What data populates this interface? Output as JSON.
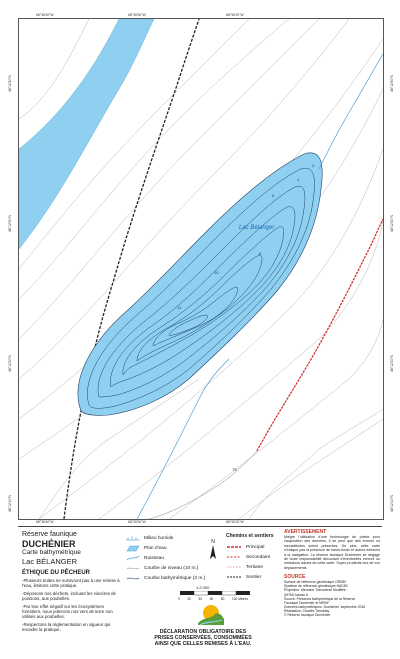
{
  "map": {
    "lake_label": "Lac Bélanger",
    "depth_labels": [
      "2",
      "4",
      "6",
      "8",
      "10",
      "12"
    ],
    "road_label": "TE"
  },
  "coordinates": {
    "top": [
      "68°35'40\"W",
      "68°35'30\"W",
      "68°35'20\"W"
    ],
    "bottom": [
      "68°35'40\"W",
      "68°35'30\"W",
      "68°35'20\"W"
    ],
    "left": [
      "48°12'40\"N",
      "48°12'30\"N",
      "48°12'20\"N",
      "48°12'10\"N"
    ],
    "right": [
      "48°12'40\"N",
      "48°12'30\"N",
      "48°12'20\"N",
      "48°12'10\"N"
    ]
  },
  "title_block": {
    "reserve_label": "Réserve faunique",
    "reserve_name": "DUCHÉNIER",
    "chart_type": "Carte bathymétrique",
    "lake_name": "Lac BÉLANGER"
  },
  "fisher_ethics": {
    "title": "ÉTHIQUE DU PÊCHEUR",
    "items": [
      "-Plusieurs truites ne survivront pas à une remise à l'eau, limitons cette pratique.",
      "-Déposons nos déchets, incluant les viscères de poissons, aux poubelles.",
      "-Par leur effet négatif sur les écosystèmes forestiers, nous jetterons nos vers de terre non utilisés aux poubelles.",
      "-Respectons la réglementation en vigueur qui encadre la pratique."
    ]
  },
  "legend": {
    "items": [
      "Milieu humide",
      "Plan d'eau",
      "Ruisseau",
      "Courbe de niveau (10 m.)",
      "Courbe bathymétrique (2 m.)"
    ],
    "trails_title": "Chemins et sentiers",
    "trails": [
      "Principal",
      "Secondaire",
      "Tertiaire",
      "Sentier"
    ]
  },
  "north_letter": "N",
  "scale": {
    "ratio": "1:2 000",
    "ticks": [
      "0",
      "20",
      "40",
      "60",
      "80",
      "100 Mètres"
    ]
  },
  "declaration": [
    "DÉCLARATION OBLIGATOIRE DES",
    "PRISES CONSERVÉES, CONSOMMÉES",
    "AINSI QUE CELLES REMISES À L'EAU."
  ],
  "warning": {
    "title": "AVERTISSEMENT",
    "text": "Malgré l'utilisation d'une technologie de pointe pour l'acquisition des données, il se peut que des erreurs ou inexactitudes soient présentes. De plus, cette carte n'indique pas la présence de hauts-fonds et autres entraves à la navigation. La réserve faunique Duchénier se dégage de toute responsabilité découlant d'éventuelles erreurs ou omissions issues de cette carte. Soyez prudents lors de vos déplacements."
  },
  "source": {
    "title": "SOURCE",
    "lines": [
      "Surface de référence géodésique GRS80",
      "Système de référence géodésique NAD83",
      "Projection: Mercator Transverse Modifiée",
      "(MTM) fuseau 6",
      "Source: Présence bathymétrique de la Réserve",
      "Faunique Duchénier et MRNF",
      "Données bathymétriques: Duchénier, septembre 2016",
      "Réalisation: Charles Tremblay",
      "© Réserve faunique Duchénier"
    ]
  },
  "colors": {
    "water": "#8fd0f0",
    "water_deep": "#6dbde6",
    "contour": "#1d3f66",
    "stream": "#4a9fd8",
    "road_primary": "#d32f2f",
    "trail": "#222222",
    "relief": "#aaaaaa",
    "warning": "#c0392b"
  }
}
